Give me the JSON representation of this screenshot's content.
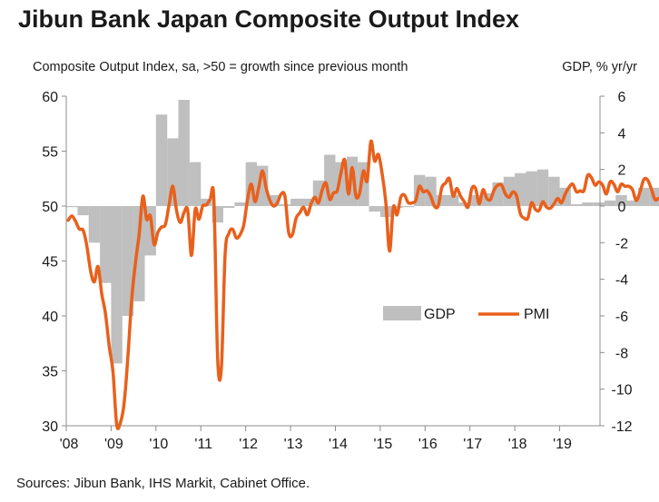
{
  "title": "Jibun Bank Japan Composite Output Index",
  "source": "Sources: Jibun Bank, IHS Markit, Cabinet Office.",
  "chart_data": {
    "type": "bar+line",
    "left_axis_label": "Composite Output Index, sa, >50 = growth since previous month",
    "right_axis_label": "GDP, % yr/yr",
    "left_ylim": [
      30,
      60
    ],
    "left_ticks": [
      "60",
      "55",
      "50",
      "45",
      "40",
      "35",
      "30"
    ],
    "right_ylim": [
      -12,
      6
    ],
    "right_ticks": [
      "6",
      "4",
      "2",
      "0",
      "-2",
      "-4",
      "-6",
      "-8",
      "-10",
      "-12"
    ],
    "x_ticks": [
      "'08",
      "'09",
      "'10",
      "'11",
      "'12",
      "'13",
      "'14",
      "'15",
      "'16",
      "'17",
      "'18",
      "'19"
    ],
    "x_range_years": [
      2008.0,
      2019.9
    ],
    "legend": [
      {
        "name": "GDP",
        "color": "#bfbfbf",
        "shape": "bar"
      },
      {
        "name": "PMI",
        "color": "#e8601c",
        "shape": "line"
      }
    ],
    "gdp": {
      "name": "GDP",
      "axis": "right",
      "color": "#bfbfbf",
      "period": "quarter",
      "start": 2008.0,
      "values": [
        0.0,
        -0.5,
        -2.0,
        -4.2,
        -8.6,
        -6.0,
        -5.2,
        -2.7,
        5.0,
        3.7,
        5.8,
        2.4,
        0.4,
        -0.9,
        -0.1,
        0.2,
        2.4,
        2.2,
        0.6,
        0.1,
        0.4,
        0.4,
        1.4,
        2.8,
        2.4,
        2.7,
        2.4,
        -0.3,
        -0.6,
        -0.1,
        0.0,
        1.7,
        1.6,
        0.6,
        0.6,
        0.2,
        0.6,
        0.7,
        1.3,
        1.6,
        1.8,
        1.9,
        2.0,
        1.6,
        1.0,
        0.1,
        0.2,
        0.2,
        0.3,
        0.6,
        0.3,
        1.0,
        1.0,
        0.9,
        0.1
      ]
    },
    "pmi": {
      "name": "PMI",
      "axis": "left",
      "color": "#e8601c",
      "period": "month",
      "start": 2008.0,
      "values": [
        48.7,
        49.1,
        48.6,
        47.9,
        47.8,
        46.4,
        44.1,
        43.1,
        44.5,
        42.0,
        40.2,
        37.2,
        34.9,
        30.1,
        30.3,
        32.1,
        36.3,
        41.5,
        44.8,
        47.4,
        50.9,
        48.8,
        49.1,
        46.5,
        47.6,
        48.1,
        48.3,
        50.1,
        51.8,
        49.6,
        48.5,
        49.4,
        49.6,
        45.5,
        49.7,
        48.8,
        50.0,
        50.1,
        50.6,
        50.6,
        36.1,
        35.3,
        45.6,
        47.5,
        47.9,
        47.1,
        47.4,
        48.3,
        50.6,
        52.0,
        50.4,
        51.7,
        53.2,
        51.6,
        50.5,
        50.0,
        50.3,
        51.1,
        50.9,
        47.6,
        47.4,
        48.9,
        49.4,
        49.9,
        49.2,
        50.2,
        50.8,
        50.3,
        51.5,
        52.1,
        50.6,
        51.2,
        51.4,
        53.0,
        54.2,
        51.1,
        53.5,
        50.9,
        51.2,
        53.2,
        52.3,
        55.9,
        54.1,
        54.7,
        53.0,
        50.3,
        45.9,
        49.9,
        49.2,
        50.8,
        51.0,
        50.3,
        50.3,
        50.5,
        51.8,
        51.3,
        51.4,
        50.9,
        50.0,
        50.0,
        51.7,
        52.1,
        52.5,
        50.9,
        51.6,
        50.9,
        50.4,
        49.9,
        51.6,
        51.6,
        50.2,
        51.5,
        50.7,
        50.6,
        51.5,
        51.9,
        51.9,
        51.1,
        50.8,
        51.3,
        50.9,
        49.3,
        48.9,
        48.9,
        50.3,
        49.7,
        49.6,
        50.4,
        49.9,
        49.8,
        50.2,
        50.7,
        50.3,
        51.1,
        51.7,
        52.0,
        51.3,
        51.4,
        51.4,
        52.8,
        52.6,
        51.9,
        52.2,
        51.9,
        51.1,
        52.2,
        52.0,
        51.3,
        52.0,
        51.8,
        51.8,
        51.5,
        50.5,
        51.3,
        52.4,
        52.4,
        51.6,
        50.6,
        50.7,
        50.8,
        51.0,
        51.0,
        50.8,
        51.5,
        50.9,
        50.4,
        51.6,
        51.5,
        49.8
      ]
    }
  }
}
